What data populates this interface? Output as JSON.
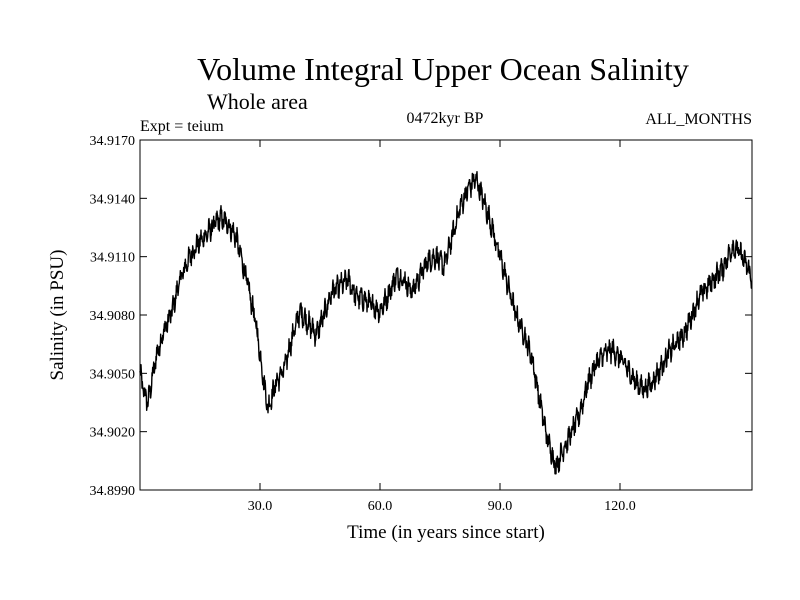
{
  "chart_data": {
    "type": "line",
    "title": "Volume Integral Upper Ocean Salinity",
    "subtitle": "Whole area",
    "expt_label": "Expt = teium",
    "period_label": "0472kyr BP",
    "months_label": "ALL_MONTHS",
    "xlabel": "Time (in years since start)",
    "ylabel": "Salinity (in PSU)",
    "xlim": [
      0,
      153
    ],
    "ylim": [
      34.899,
      34.917
    ],
    "x_ticks": [
      {
        "value": 30,
        "label": "30.0"
      },
      {
        "value": 60,
        "label": "60.0"
      },
      {
        "value": 90,
        "label": "90.0"
      },
      {
        "value": 120,
        "label": "120.0"
      }
    ],
    "y_ticks": [
      {
        "value": 34.899,
        "label": "34.8990"
      },
      {
        "value": 34.902,
        "label": "34.9020"
      },
      {
        "value": 34.905,
        "label": "34.9050"
      },
      {
        "value": 34.908,
        "label": "34.9080"
      },
      {
        "value": 34.911,
        "label": "34.9110"
      },
      {
        "value": 34.914,
        "label": "34.9140"
      },
      {
        "value": 34.917,
        "label": "34.9170"
      }
    ],
    "series": [
      {
        "name": "salinity",
        "color": "#000000",
        "trend_x": [
          0,
          1,
          2,
          4,
          6,
          8,
          10,
          12,
          14,
          16,
          18,
          20,
          22,
          24,
          25,
          27,
          29,
          31,
          32,
          34,
          36,
          38,
          40,
          42,
          44,
          46,
          48,
          50,
          52,
          54,
          56,
          58,
          60,
          62,
          64,
          66,
          68,
          70,
          72,
          74,
          76,
          78,
          80,
          82,
          84,
          86,
          88,
          90,
          92,
          94,
          96,
          98,
          100,
          102,
          104,
          106,
          108,
          110,
          112,
          114,
          116,
          118,
          120,
          122,
          124,
          126,
          128,
          130,
          132,
          134,
          136,
          138,
          140,
          142,
          144,
          146,
          148,
          150,
          152,
          153
        ],
        "trend_y": [
          34.905,
          34.904,
          34.9035,
          34.9058,
          34.9072,
          34.9082,
          34.9098,
          34.9108,
          34.9115,
          34.912,
          34.9125,
          34.913,
          34.9127,
          34.912,
          34.9112,
          34.9095,
          34.9075,
          34.9045,
          34.9032,
          34.9045,
          34.9052,
          34.9068,
          34.9082,
          34.9076,
          34.907,
          34.908,
          34.9092,
          34.9095,
          34.9098,
          34.909,
          34.9088,
          34.9085,
          34.9082,
          34.909,
          34.91,
          34.9098,
          34.9092,
          34.91,
          34.9108,
          34.911,
          34.9105,
          34.912,
          34.9135,
          34.9145,
          34.915,
          34.9138,
          34.9125,
          34.911,
          34.9095,
          34.908,
          34.907,
          34.9058,
          34.9035,
          34.9015,
          34.9002,
          34.9012,
          34.902,
          34.903,
          34.9045,
          34.9055,
          34.906,
          34.9062,
          34.9058,
          34.9052,
          34.9045,
          34.9042,
          34.9045,
          34.9052,
          34.906,
          34.9065,
          34.907,
          34.908,
          34.909,
          34.9095,
          34.91,
          34.9105,
          34.9115,
          34.9112,
          34.9104,
          34.9098
        ],
        "noise_amplitude": 0.0004,
        "annual_cycle_amplitude": 0.0003
      }
    ]
  }
}
